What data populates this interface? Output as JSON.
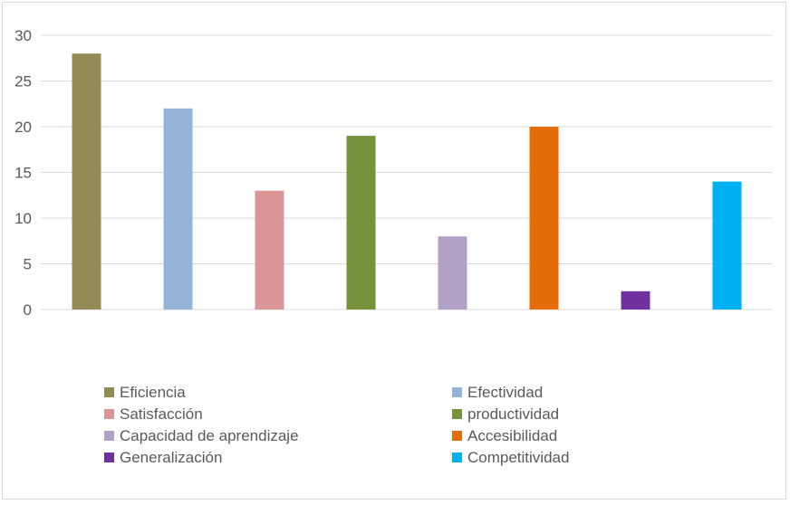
{
  "chart_data": {
    "type": "bar",
    "title": "",
    "xlabel": "",
    "ylabel": "",
    "ylim": [
      0,
      30
    ],
    "yticks": [
      0,
      5,
      10,
      15,
      20,
      25,
      30
    ],
    "grid": true,
    "legend_position": "bottom",
    "categories": [
      "Eficiencia",
      "Efectividad",
      "Satisfacción",
      "productividad",
      "Capacidad de aprendizaje",
      "Accesibilidad",
      "Generalización",
      "Competitividad"
    ],
    "values": [
      28,
      22,
      13,
      19,
      8,
      20,
      2,
      14
    ],
    "colors": [
      "#948a54",
      "#95b3d7",
      "#da9694",
      "#76923c",
      "#b2a1c7",
      "#e46c0a",
      "#7030a0",
      "#00b0f0"
    ]
  }
}
